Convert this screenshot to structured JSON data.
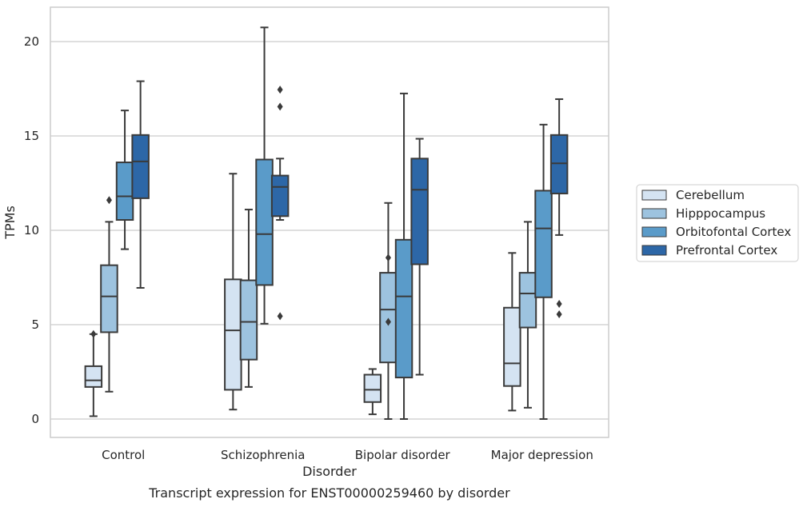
{
  "chart_data": {
    "type": "box",
    "title": "",
    "caption": "Transcript expression for ENST00000259460 by disorder",
    "xlabel": "Disorder",
    "ylabel": "TPMs",
    "ylim": [
      -1,
      22
    ],
    "yticks": [
      0,
      5,
      10,
      15,
      20
    ],
    "grid": "horizontal",
    "legend_position": "right",
    "categories": [
      "Control",
      "Schizophrenia",
      "Bipolar disorder",
      "Major depression"
    ],
    "series": [
      {
        "name": "Cerebellum",
        "color": "#d4e3f2",
        "boxes": [
          {
            "whislo": 0.15,
            "q1": 1.7,
            "med": 2.05,
            "q3": 2.8,
            "whishi": 4.5,
            "fliers": [
              4.5
            ]
          },
          {
            "whislo": 0.5,
            "q1": 1.55,
            "med": 4.7,
            "q3": 7.4,
            "whishi": 13.0,
            "fliers": []
          },
          {
            "whislo": 0.25,
            "q1": 0.9,
            "med": 1.55,
            "q3": 2.35,
            "whishi": 2.65,
            "fliers": []
          },
          {
            "whislo": 0.45,
            "q1": 1.75,
            "med": 2.95,
            "q3": 5.9,
            "whishi": 8.8,
            "fliers": []
          }
        ]
      },
      {
        "name": "Hipppocampus",
        "color": "#9dc3df",
        "boxes": [
          {
            "whislo": 1.45,
            "q1": 4.6,
            "med": 6.5,
            "q3": 8.15,
            "whishi": 10.45,
            "fliers": [
              11.6
            ]
          },
          {
            "whislo": 1.7,
            "q1": 3.15,
            "med": 5.15,
            "q3": 7.35,
            "whishi": 11.1,
            "fliers": []
          },
          {
            "whislo": 0.0,
            "q1": 3.0,
            "med": 5.8,
            "q3": 7.75,
            "whishi": 11.45,
            "fliers": [
              5.15,
              8.55
            ]
          },
          {
            "whislo": 0.6,
            "q1": 4.85,
            "med": 6.65,
            "q3": 7.75,
            "whishi": 10.45,
            "fliers": []
          }
        ]
      },
      {
        "name": "Orbitofontal Cortex",
        "color": "#5a9bc9",
        "boxes": [
          {
            "whislo": 9.0,
            "q1": 10.55,
            "med": 11.8,
            "q3": 13.6,
            "whishi": 16.35,
            "fliers": []
          },
          {
            "whislo": 5.05,
            "q1": 7.1,
            "med": 9.8,
            "q3": 13.75,
            "whishi": 20.75,
            "fliers": []
          },
          {
            "whislo": 0.0,
            "q1": 2.2,
            "med": 6.5,
            "q3": 9.5,
            "whishi": 17.25,
            "fliers": []
          },
          {
            "whislo": 0.0,
            "q1": 6.45,
            "med": 10.1,
            "q3": 12.1,
            "whishi": 15.6,
            "fliers": []
          }
        ]
      },
      {
        "name": "Prefrontal Cortex",
        "color": "#2d67a7",
        "boxes": [
          {
            "whislo": 6.95,
            "q1": 11.7,
            "med": 13.65,
            "q3": 15.05,
            "whishi": 17.9,
            "fliers": []
          },
          {
            "whislo": 10.55,
            "q1": 10.75,
            "med": 12.3,
            "q3": 12.9,
            "whishi": 13.8,
            "fliers": [
              5.45,
              16.55,
              17.45
            ]
          },
          {
            "whislo": 2.35,
            "q1": 8.2,
            "med": 12.15,
            "q3": 13.8,
            "whishi": 14.85,
            "fliers": []
          },
          {
            "whislo": 9.75,
            "q1": 11.95,
            "med": 13.55,
            "q3": 15.05,
            "whishi": 16.95,
            "fliers": [
              5.55,
              6.1
            ]
          }
        ]
      }
    ]
  }
}
